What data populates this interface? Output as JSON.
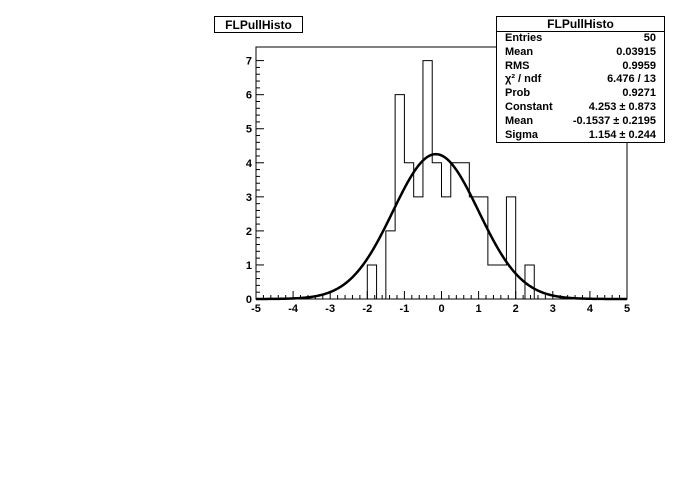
{
  "chart_data": {
    "type": "histogram",
    "title": "FLPullHisto",
    "bin_edges_start": -5,
    "bin_width": 0.25,
    "bin_counts": [
      0,
      0,
      0,
      0,
      0,
      0,
      0,
      0,
      0,
      0,
      0,
      0,
      1,
      0,
      2,
      6,
      4,
      3,
      7,
      4,
      3,
      4,
      4,
      3,
      3,
      1,
      1,
      3,
      0,
      1,
      0,
      0,
      0,
      0,
      0,
      0,
      0,
      0,
      0,
      0
    ],
    "xlim": [
      -5,
      5
    ],
    "ylim": [
      0,
      7.4
    ],
    "xticks": [
      "-5",
      "-4",
      "-3",
      "-2",
      "-1",
      "0",
      "1",
      "2",
      "3",
      "4",
      "5"
    ],
    "yticks": [
      "0",
      "1",
      "2",
      "3",
      "4",
      "5",
      "6",
      "7"
    ],
    "fit": {
      "function": "gaus",
      "constant": 4.253,
      "mean": -0.1537,
      "sigma": 1.154
    },
    "stats": {
      "header": "FLPullHisto",
      "rows": [
        {
          "name": "Entries",
          "value": "50"
        },
        {
          "name": "Mean",
          "value": "0.03915"
        },
        {
          "name": "RMS",
          "value": "0.9959"
        },
        {
          "name": "χ² / ndf",
          "value": "6.476 / 13"
        },
        {
          "name": "Prob",
          "value": "0.9271"
        },
        {
          "name": "Constant",
          "value": "4.253 ± 0.873"
        },
        {
          "name": "Mean",
          "value": "-0.1537 ± 0.2195"
        },
        {
          "name": "Sigma",
          "value": "1.154 ± 0.244"
        }
      ]
    }
  }
}
